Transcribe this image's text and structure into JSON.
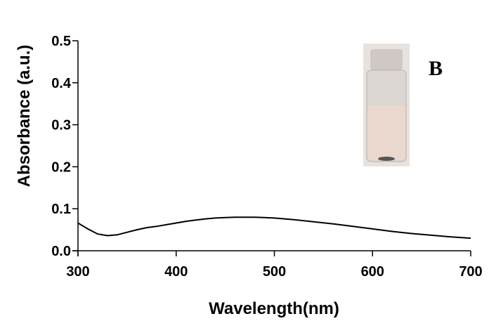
{
  "chart_data": {
    "type": "line",
    "x_label": "Wavelength(nm)",
    "y_label": "Absorbance (a.u.)",
    "annotation": "B",
    "x": [
      300,
      310,
      320,
      330,
      340,
      350,
      360,
      370,
      380,
      390,
      400,
      410,
      420,
      430,
      440,
      450,
      460,
      470,
      480,
      490,
      500,
      520,
      540,
      560,
      580,
      600,
      620,
      640,
      660,
      680,
      700
    ],
    "series": [
      {
        "color": "#000000",
        "values": [
          0.066,
          0.052,
          0.04,
          0.036,
          0.038,
          0.044,
          0.05,
          0.055,
          0.058,
          0.062,
          0.066,
          0.07,
          0.073,
          0.076,
          0.078,
          0.079,
          0.08,
          0.08,
          0.08,
          0.079,
          0.078,
          0.074,
          0.069,
          0.064,
          0.058,
          0.052,
          0.046,
          0.041,
          0.037,
          0.033,
          0.03
        ]
      }
    ],
    "xlim": [
      300,
      700
    ],
    "xticks": [
      300,
      400,
      500,
      600,
      700
    ],
    "ylim": [
      0,
      0.5
    ],
    "yticks": [
      {
        "value": 0,
        "label": "0.0"
      },
      0.1,
      0.2,
      0.3,
      0.4,
      0.5
    ],
    "grid": false
  }
}
